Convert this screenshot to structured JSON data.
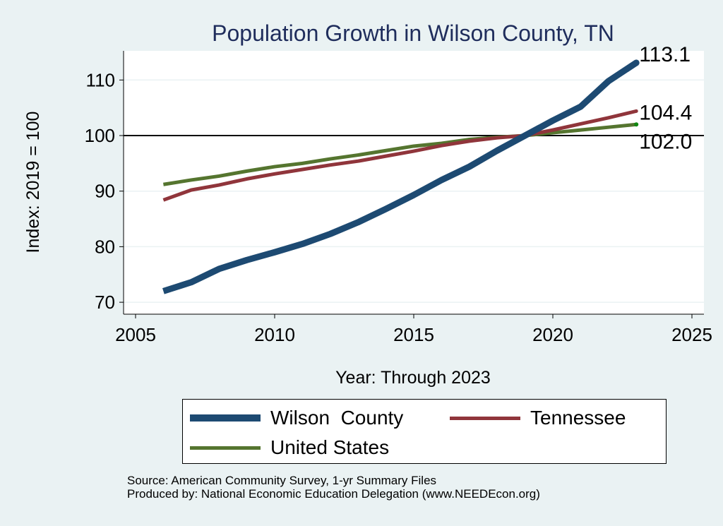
{
  "chart_data": {
    "type": "line",
    "title": "Population Growth in Wilson County, TN",
    "xlabel": "Year: Through 2023",
    "ylabel": "Index: 2019 = 100",
    "xlim": [
      2005,
      2025
    ],
    "ylim": [
      68,
      117
    ],
    "xticks": [
      2005,
      2010,
      2015,
      2020,
      2025
    ],
    "yticks": [
      70,
      80,
      90,
      100,
      110
    ],
    "grid": true,
    "reference_line": 100,
    "legend_placement": "bottom",
    "x": [
      2006,
      2007,
      2008,
      2009,
      2010,
      2011,
      2012,
      2013,
      2014,
      2015,
      2016,
      2017,
      2018,
      2019,
      2020,
      2021,
      2022,
      2023
    ],
    "series": [
      {
        "name": "Wilson  County",
        "color": "#1d4a72",
        "values": [
          72.0,
          73.6,
          76.0,
          77.6,
          79.0,
          80.5,
          82.3,
          84.4,
          86.8,
          89.3,
          92.0,
          94.4,
          97.3,
          100,
          102.7,
          105.2,
          109.8,
          113.1
        ],
        "end_label": "113.1"
      },
      {
        "name": "Tennessee",
        "color": "#90353b",
        "values": [
          88.4,
          90.2,
          91.1,
          92.2,
          93.1,
          93.9,
          94.7,
          95.4,
          96.3,
          97.2,
          98.2,
          99.0,
          99.6,
          100,
          101.0,
          102.1,
          103.2,
          104.4
        ],
        "end_label": "104.4"
      },
      {
        "name": "United States",
        "color": "#55752f",
        "values": [
          91.2,
          92.0,
          92.7,
          93.6,
          94.4,
          95.0,
          95.8,
          96.5,
          97.3,
          98.1,
          98.6,
          99.3,
          99.7,
          100,
          100.5,
          101.0,
          101.5,
          102.0
        ],
        "end_label": "102.0"
      }
    ]
  },
  "source": {
    "line1": "Source: American Community Survey, 1-yr Summary Files",
    "line2": "Produced by: National Economic Education Delegation (www.NEEDEcon.org)"
  }
}
